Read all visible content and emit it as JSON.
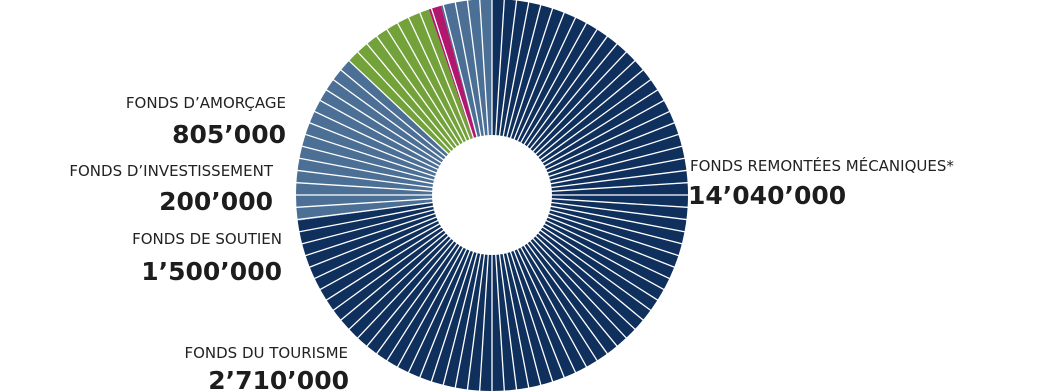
{
  "chart_data": {
    "type": "pie",
    "subtype": "donut",
    "categories": [
      "FONDS REMONTÉES MÉCANIQUES*",
      "FONDS DU TOURISME",
      "FONDS DE SOUTIEN",
      "FONDS D’INVESTISSEMENT",
      "FONDS D’AMORÇAGE"
    ],
    "values": [
      14040000,
      2710000,
      1500000,
      200000,
      805000
    ],
    "value_labels": [
      "14’040’000",
      "2’710’000",
      "1’500’000",
      "200’000",
      "805’000"
    ],
    "colors": [
      "#0f2f5c",
      "#4b6f95",
      "#74a23a",
      "#b2176e",
      "#4b6f95"
    ],
    "segment_stripes": true,
    "legend": "none"
  }
}
